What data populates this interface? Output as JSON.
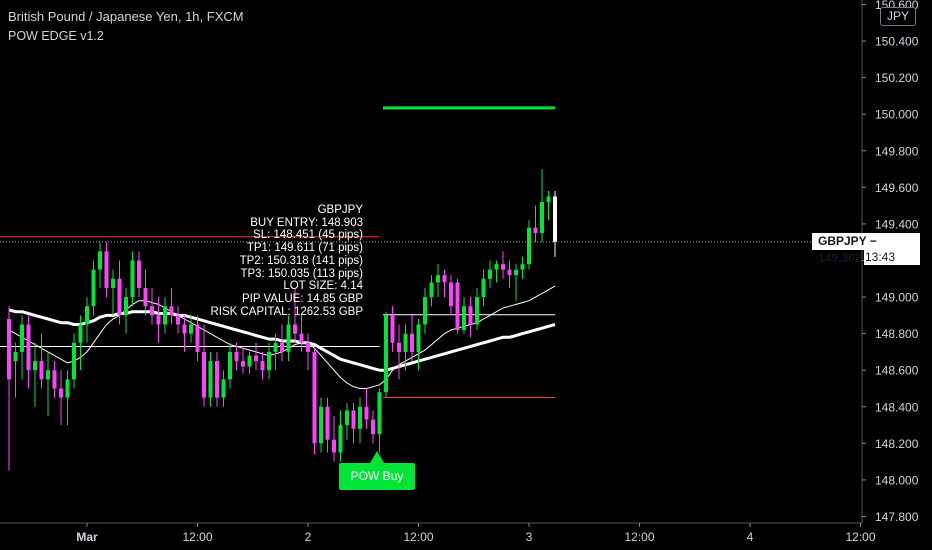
{
  "header": {
    "symbol_title": "British Pound / Japanese Yen, 1h, FXCM",
    "indicator_title": "POW EDGE v1.2"
  },
  "price_scale": {
    "currency": "JPY",
    "current_label": "GBPJPY − 149.302",
    "countdown": "13:43"
  },
  "colors": {
    "background": "#000000",
    "bull_candle": "#00e536",
    "bear_candle": "#ff40ff",
    "last_candle": "#ffffff",
    "take_profit": "#00e536",
    "stop_loss": "#ff3333",
    "entry_line": "#ffffff",
    "moving_average": "#ffffff"
  },
  "info_block": {
    "lines": [
      "GBPJPY",
      "BUY ENTRY: 148.903",
      "SL: 148.451 (45 pips)",
      "TP1: 149.611 (71 pips)",
      "TP2: 150.318 (141 pips)",
      "TP3: 150.035 (113 pips)",
      "LOT SIZE: 4.14",
      "PIP VALUE: 14.85 GBP",
      "RISK CAPITAL: 1262.53 GBP"
    ]
  },
  "signal": {
    "label": "POW Buy",
    "icon": "up-arrow-icon"
  },
  "chart_data": {
    "type": "candlestick",
    "title": "British Pound / Japanese Yen, 1h, FXCM",
    "ylim": [
      147.8,
      150.6
    ],
    "y_ticks": [
      "150.600",
      "150.400",
      "150.200",
      "150.000",
      "149.800",
      "149.600",
      "149.400",
      "149.200",
      "149.000",
      "148.800",
      "148.600",
      "148.400",
      "148.200",
      "148.000",
      "147.800"
    ],
    "x_ticks": [
      "Mar",
      "12:00",
      "2",
      "12:00",
      "3",
      "12:00",
      "4",
      "12:00"
    ],
    "x_tick_bar_index": [
      12,
      29,
      46,
      63,
      80,
      97,
      114,
      131
    ],
    "grid": false,
    "current_price": 149.302,
    "candles": [
      {
        "o": 148.88,
        "h": 148.95,
        "l": 148.05,
        "c": 148.55
      },
      {
        "o": 148.65,
        "h": 148.75,
        "l": 148.45,
        "c": 148.7
      },
      {
        "o": 148.7,
        "h": 148.9,
        "l": 148.55,
        "c": 148.85
      },
      {
        "o": 148.85,
        "h": 148.9,
        "l": 148.5,
        "c": 148.6
      },
      {
        "o": 148.6,
        "h": 148.75,
        "l": 148.4,
        "c": 148.65
      },
      {
        "o": 148.65,
        "h": 148.8,
        "l": 148.5,
        "c": 148.55
      },
      {
        "o": 148.55,
        "h": 148.7,
        "l": 148.35,
        "c": 148.6
      },
      {
        "o": 148.6,
        "h": 148.65,
        "l": 148.45,
        "c": 148.5
      },
      {
        "o": 148.5,
        "h": 148.6,
        "l": 148.3,
        "c": 148.45
      },
      {
        "o": 148.45,
        "h": 148.6,
        "l": 148.3,
        "c": 148.55
      },
      {
        "o": 148.55,
        "h": 148.8,
        "l": 148.5,
        "c": 148.75
      },
      {
        "o": 148.75,
        "h": 148.9,
        "l": 148.6,
        "c": 148.85
      },
      {
        "o": 148.85,
        "h": 149.0,
        "l": 148.75,
        "c": 148.95
      },
      {
        "o": 148.95,
        "h": 149.2,
        "l": 148.9,
        "c": 149.15
      },
      {
        "o": 149.15,
        "h": 149.3,
        "l": 149.05,
        "c": 149.25
      },
      {
        "o": 149.25,
        "h": 149.3,
        "l": 149.0,
        "c": 149.05
      },
      {
        "o": 149.05,
        "h": 149.15,
        "l": 148.9,
        "c": 149.1
      },
      {
        "o": 149.1,
        "h": 149.2,
        "l": 148.85,
        "c": 148.9
      },
      {
        "o": 148.9,
        "h": 149.05,
        "l": 148.8,
        "c": 149.0
      },
      {
        "o": 149.0,
        "h": 149.25,
        "l": 148.95,
        "c": 149.2
      },
      {
        "o": 149.2,
        "h": 149.25,
        "l": 149.0,
        "c": 149.05
      },
      {
        "o": 149.05,
        "h": 149.15,
        "l": 148.9,
        "c": 148.95
      },
      {
        "o": 148.95,
        "h": 149.05,
        "l": 148.85,
        "c": 148.9
      },
      {
        "o": 148.9,
        "h": 149.0,
        "l": 148.75,
        "c": 148.85
      },
      {
        "o": 148.85,
        "h": 149.0,
        "l": 148.8,
        "c": 148.95
      },
      {
        "o": 148.95,
        "h": 149.05,
        "l": 148.85,
        "c": 148.9
      },
      {
        "o": 148.9,
        "h": 148.95,
        "l": 148.8,
        "c": 148.85
      },
      {
        "o": 148.85,
        "h": 148.9,
        "l": 148.7,
        "c": 148.8
      },
      {
        "o": 148.8,
        "h": 148.9,
        "l": 148.75,
        "c": 148.85
      },
      {
        "o": 148.85,
        "h": 148.9,
        "l": 148.65,
        "c": 148.7
      },
      {
        "o": 148.7,
        "h": 148.85,
        "l": 148.4,
        "c": 148.45
      },
      {
        "o": 148.45,
        "h": 148.7,
        "l": 148.4,
        "c": 148.65
      },
      {
        "o": 148.65,
        "h": 148.7,
        "l": 148.4,
        "c": 148.45
      },
      {
        "o": 148.45,
        "h": 148.6,
        "l": 148.4,
        "c": 148.55
      },
      {
        "o": 148.55,
        "h": 148.75,
        "l": 148.5,
        "c": 148.7
      },
      {
        "o": 148.7,
        "h": 148.75,
        "l": 148.6,
        "c": 148.65
      },
      {
        "o": 148.65,
        "h": 148.72,
        "l": 148.58,
        "c": 148.62
      },
      {
        "o": 148.62,
        "h": 148.7,
        "l": 148.58,
        "c": 148.68
      },
      {
        "o": 148.68,
        "h": 148.75,
        "l": 148.6,
        "c": 148.65
      },
      {
        "o": 148.65,
        "h": 148.7,
        "l": 148.55,
        "c": 148.6
      },
      {
        "o": 148.6,
        "h": 148.75,
        "l": 148.55,
        "c": 148.7
      },
      {
        "o": 148.7,
        "h": 148.8,
        "l": 148.6,
        "c": 148.75
      },
      {
        "o": 148.75,
        "h": 148.85,
        "l": 148.65,
        "c": 148.7
      },
      {
        "o": 148.7,
        "h": 148.9,
        "l": 148.65,
        "c": 148.85
      },
      {
        "o": 148.85,
        "h": 149.05,
        "l": 148.75,
        "c": 148.8
      },
      {
        "o": 148.8,
        "h": 148.9,
        "l": 148.7,
        "c": 148.75
      },
      {
        "o": 148.75,
        "h": 148.8,
        "l": 148.6,
        "c": 148.7
      },
      {
        "o": 148.7,
        "h": 148.72,
        "l": 148.14,
        "c": 148.2
      },
      {
        "o": 148.2,
        "h": 148.45,
        "l": 148.15,
        "c": 148.4
      },
      {
        "o": 148.4,
        "h": 148.45,
        "l": 148.15,
        "c": 148.22
      },
      {
        "o": 148.22,
        "h": 148.35,
        "l": 148.1,
        "c": 148.15
      },
      {
        "o": 148.15,
        "h": 148.38,
        "l": 148.1,
        "c": 148.3
      },
      {
        "o": 148.3,
        "h": 148.42,
        "l": 148.22,
        "c": 148.38
      },
      {
        "o": 148.38,
        "h": 148.42,
        "l": 148.2,
        "c": 148.28
      },
      {
        "o": 148.28,
        "h": 148.45,
        "l": 148.2,
        "c": 148.4
      },
      {
        "o": 148.4,
        "h": 148.5,
        "l": 148.28,
        "c": 148.33
      },
      {
        "o": 148.33,
        "h": 148.38,
        "l": 148.2,
        "c": 148.25
      },
      {
        "o": 148.25,
        "h": 148.5,
        "l": 148.15,
        "c": 148.48
      },
      {
        "o": 148.48,
        "h": 148.92,
        "l": 148.45,
        "c": 148.9
      },
      {
        "o": 148.9,
        "h": 148.95,
        "l": 148.7,
        "c": 148.75
      },
      {
        "o": 148.75,
        "h": 148.85,
        "l": 148.55,
        "c": 148.7
      },
      {
        "o": 148.7,
        "h": 148.85,
        "l": 148.6,
        "c": 148.8
      },
      {
        "o": 148.8,
        "h": 148.9,
        "l": 148.65,
        "c": 148.7
      },
      {
        "o": 148.7,
        "h": 148.88,
        "l": 148.6,
        "c": 148.85
      },
      {
        "o": 148.85,
        "h": 149.05,
        "l": 148.8,
        "c": 149.0
      },
      {
        "o": 149.0,
        "h": 149.12,
        "l": 148.95,
        "c": 149.08
      },
      {
        "o": 149.08,
        "h": 149.18,
        "l": 149.0,
        "c": 149.12
      },
      {
        "o": 149.12,
        "h": 149.15,
        "l": 149.0,
        "c": 149.08
      },
      {
        "o": 149.08,
        "h": 149.12,
        "l": 148.9,
        "c": 148.95
      },
      {
        "o": 149.08,
        "h": 149.1,
        "l": 148.8,
        "c": 148.82
      },
      {
        "o": 148.82,
        "h": 149.0,
        "l": 148.8,
        "c": 148.95
      },
      {
        "o": 148.95,
        "h": 149.0,
        "l": 148.78,
        "c": 148.85
      },
      {
        "o": 148.85,
        "h": 149.05,
        "l": 148.82,
        "c": 149.0
      },
      {
        "o": 149.0,
        "h": 149.15,
        "l": 148.95,
        "c": 149.1
      },
      {
        "o": 149.1,
        "h": 149.2,
        "l": 149.05,
        "c": 149.15
      },
      {
        "o": 149.15,
        "h": 149.2,
        "l": 149.08,
        "c": 149.18
      },
      {
        "o": 149.18,
        "h": 149.25,
        "l": 149.1,
        "c": 149.15
      },
      {
        "o": 149.15,
        "h": 149.2,
        "l": 149.05,
        "c": 149.12
      },
      {
        "o": 149.12,
        "h": 149.18,
        "l": 148.98,
        "c": 149.15
      },
      {
        "o": 149.15,
        "h": 149.22,
        "l": 149.1,
        "c": 149.18
      },
      {
        "o": 149.18,
        "h": 149.42,
        "l": 149.15,
        "c": 149.38
      },
      {
        "o": 149.38,
        "h": 149.5,
        "l": 149.3,
        "c": 149.35
      },
      {
        "o": 149.35,
        "h": 149.7,
        "l": 149.3,
        "c": 149.52
      },
      {
        "o": 149.52,
        "h": 149.58,
        "l": 149.42,
        "c": 149.55
      },
      {
        "o": 149.55,
        "h": 149.58,
        "l": 149.22,
        "c": 149.302
      }
    ],
    "overlays": [
      {
        "name": "tp_level",
        "kind": "hline",
        "value": 150.035,
        "from_bar": 58,
        "to_bar": 84,
        "color": "#00e536"
      },
      {
        "name": "entry_level",
        "kind": "hline",
        "value": 148.903,
        "from_bar": 58,
        "to_bar": 84,
        "color": "#ffffff"
      },
      {
        "name": "sl_level",
        "kind": "hline",
        "value": 148.451,
        "from_bar": 58,
        "to_bar": 84,
        "color": "#ff3333"
      },
      {
        "name": "level_line_left",
        "kind": "hline",
        "value": 149.33,
        "from_bar": 0,
        "to_bar": 57,
        "color": "#ff3333"
      },
      {
        "name": "level_line_left_white",
        "kind": "hline",
        "value": 148.73,
        "from_bar": 0,
        "to_bar": 57,
        "color": "#ffffff"
      }
    ],
    "moving_averages": [
      {
        "name": "ma_slow",
        "width": 3,
        "values": [
          148.93,
          148.92,
          148.92,
          148.91,
          148.9,
          148.89,
          148.88,
          148.87,
          148.86,
          148.86,
          148.85,
          148.85,
          148.86,
          148.87,
          148.89,
          148.9,
          148.9,
          148.91,
          148.91,
          148.92,
          148.92,
          148.92,
          148.92,
          148.91,
          148.91,
          148.91,
          148.9,
          148.9,
          148.89,
          148.88,
          148.87,
          148.86,
          148.85,
          148.84,
          148.83,
          148.82,
          148.81,
          148.8,
          148.79,
          148.78,
          148.77,
          148.77,
          148.76,
          148.76,
          148.76,
          148.75,
          148.75,
          148.74,
          148.72,
          148.7,
          148.68,
          148.66,
          148.65,
          148.64,
          148.63,
          148.62,
          148.61,
          148.6,
          148.6,
          148.61,
          148.62,
          148.63,
          148.64,
          148.65,
          148.66,
          148.67,
          148.68,
          148.69,
          148.7,
          148.71,
          148.72,
          148.73,
          148.74,
          148.75,
          148.76,
          148.77,
          148.78,
          148.78,
          148.79,
          148.8,
          148.81,
          148.82,
          148.83,
          148.84,
          148.85
        ]
      },
      {
        "name": "ma_fast",
        "width": 1,
        "values": [
          148.82,
          148.8,
          148.78,
          148.76,
          148.74,
          148.72,
          148.7,
          148.68,
          148.66,
          148.64,
          148.65,
          148.67,
          148.7,
          148.75,
          148.8,
          148.85,
          148.88,
          148.9,
          148.93,
          148.96,
          148.98,
          148.98,
          148.97,
          148.96,
          148.94,
          148.92,
          148.9,
          148.88,
          148.86,
          148.84,
          148.82,
          148.8,
          148.78,
          148.76,
          148.74,
          148.73,
          148.72,
          148.71,
          148.7,
          148.69,
          148.68,
          148.69,
          148.7,
          148.72,
          148.74,
          148.75,
          148.75,
          148.72,
          148.68,
          148.64,
          148.6,
          148.56,
          148.53,
          148.51,
          148.5,
          148.5,
          148.51,
          148.52,
          148.55,
          148.6,
          148.63,
          148.65,
          148.67,
          148.69,
          148.71,
          148.74,
          148.77,
          148.8,
          148.82,
          148.83,
          148.84,
          148.85,
          148.86,
          148.88,
          148.9,
          148.92,
          148.94,
          148.95,
          148.96,
          148.97,
          148.98,
          149.0,
          149.02,
          149.04,
          149.06
        ]
      }
    ]
  }
}
